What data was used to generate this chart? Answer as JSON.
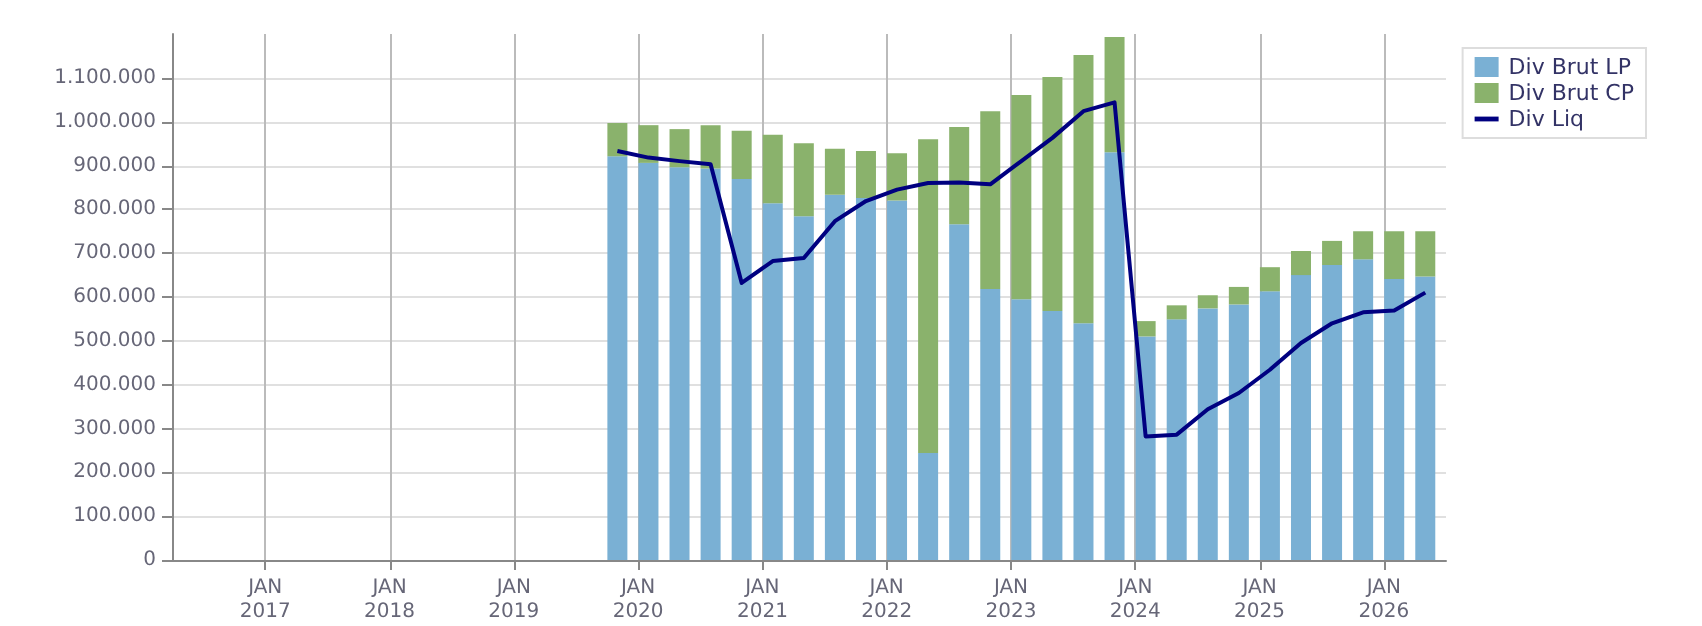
{
  "chart_data": {
    "type": "bar",
    "stacked": true,
    "grid": true,
    "legend": "top right",
    "x": [
      "2019-11",
      "2020-02",
      "2020-05",
      "2020-08",
      "2020-11",
      "2021-02",
      "2021-05",
      "2021-08",
      "2021-11",
      "2022-02",
      "2022-05",
      "2022-08",
      "2022-11",
      "2023-02",
      "2023-05",
      "2023-08",
      "2023-11",
      "2024-02",
      "2024-05",
      "2024-08",
      "2024-11",
      "2025-02",
      "2025-05",
      "2025-08",
      "2025-11",
      "2026-02",
      "2026-05"
    ],
    "series": [
      {
        "name": "Div Brut LP",
        "color": "#7ab0d4",
        "values": [
          921000,
          906000,
          896000,
          893000,
          869000,
          814000,
          784000,
          833000,
          826000,
          820000,
          244000,
          766000,
          618000,
          595000,
          568000,
          540000,
          930000,
          510000,
          549000,
          574000,
          583000,
          613000,
          650000,
          673000,
          686000,
          641000,
          647000
        ]
      },
      {
        "name": "Div Brut CP",
        "color": "#8ab26c",
        "values": [
          76000,
          86000,
          87000,
          99000,
          110000,
          156000,
          167000,
          105000,
          107000,
          108000,
          716000,
          222000,
          406000,
          466000,
          534000,
          612000,
          263000,
          35000,
          32000,
          30000,
          40000,
          55000,
          55000,
          55000,
          64000,
          109000,
          103000
        ]
      },
      {
        "name": "Div Liq",
        "type": "line",
        "color": "#000080",
        "line_style": "solid",
        "values": [
          933000,
          918000,
          910000,
          903000,
          632000,
          682000,
          689000,
          773000,
          819000,
          845000,
          860000,
          861000,
          857000,
          910000,
          963000,
          1024000,
          1044000,
          282000,
          286000,
          344000,
          381000,
          434000,
          495000,
          540000,
          565000,
          569000,
          610000
        ]
      }
    ],
    "xlim": [
      "2016-04",
      "2026-07"
    ],
    "xticks": [
      {
        "value": "2017-01-01",
        "label": "JAN\n2017"
      },
      {
        "value": "2018-01-01",
        "label": "JAN\n2018"
      },
      {
        "value": "2019-01-01",
        "label": "JAN\n2019"
      },
      {
        "value": "2020-01-01",
        "label": "JAN\n2020"
      },
      {
        "value": "2021-01-01",
        "label": "JAN\n2021"
      },
      {
        "value": "2022-01-01",
        "label": "JAN\n2022"
      },
      {
        "value": "2023-01-01",
        "label": "JAN\n2023"
      },
      {
        "value": "2024-01-01",
        "label": "JAN\n2024"
      },
      {
        "value": "2025-01-01",
        "label": "JAN\n2025"
      },
      {
        "value": "2026-01-01",
        "label": "JAN\n2026"
      }
    ],
    "ylim": [
      0,
      1200000
    ],
    "yticks": [
      0,
      {
        "value": 100000,
        "label": "100.000"
      },
      {
        "value": 200000,
        "label": "200.000"
      },
      {
        "value": 300000,
        "label": "300.000"
      },
      {
        "value": 400000,
        "label": "400.000"
      },
      {
        "value": 500000,
        "label": "500.000"
      },
      {
        "value": 600000,
        "label": "600.000"
      },
      {
        "value": 700000,
        "label": "700.000"
      },
      {
        "value": 800000,
        "label": "800.000"
      },
      {
        "value": 900000,
        "label": "900.000"
      },
      {
        "value": 1000000,
        "label": "1.000.000"
      },
      {
        "value": 1100000,
        "label": "1.100.000"
      }
    ]
  }
}
